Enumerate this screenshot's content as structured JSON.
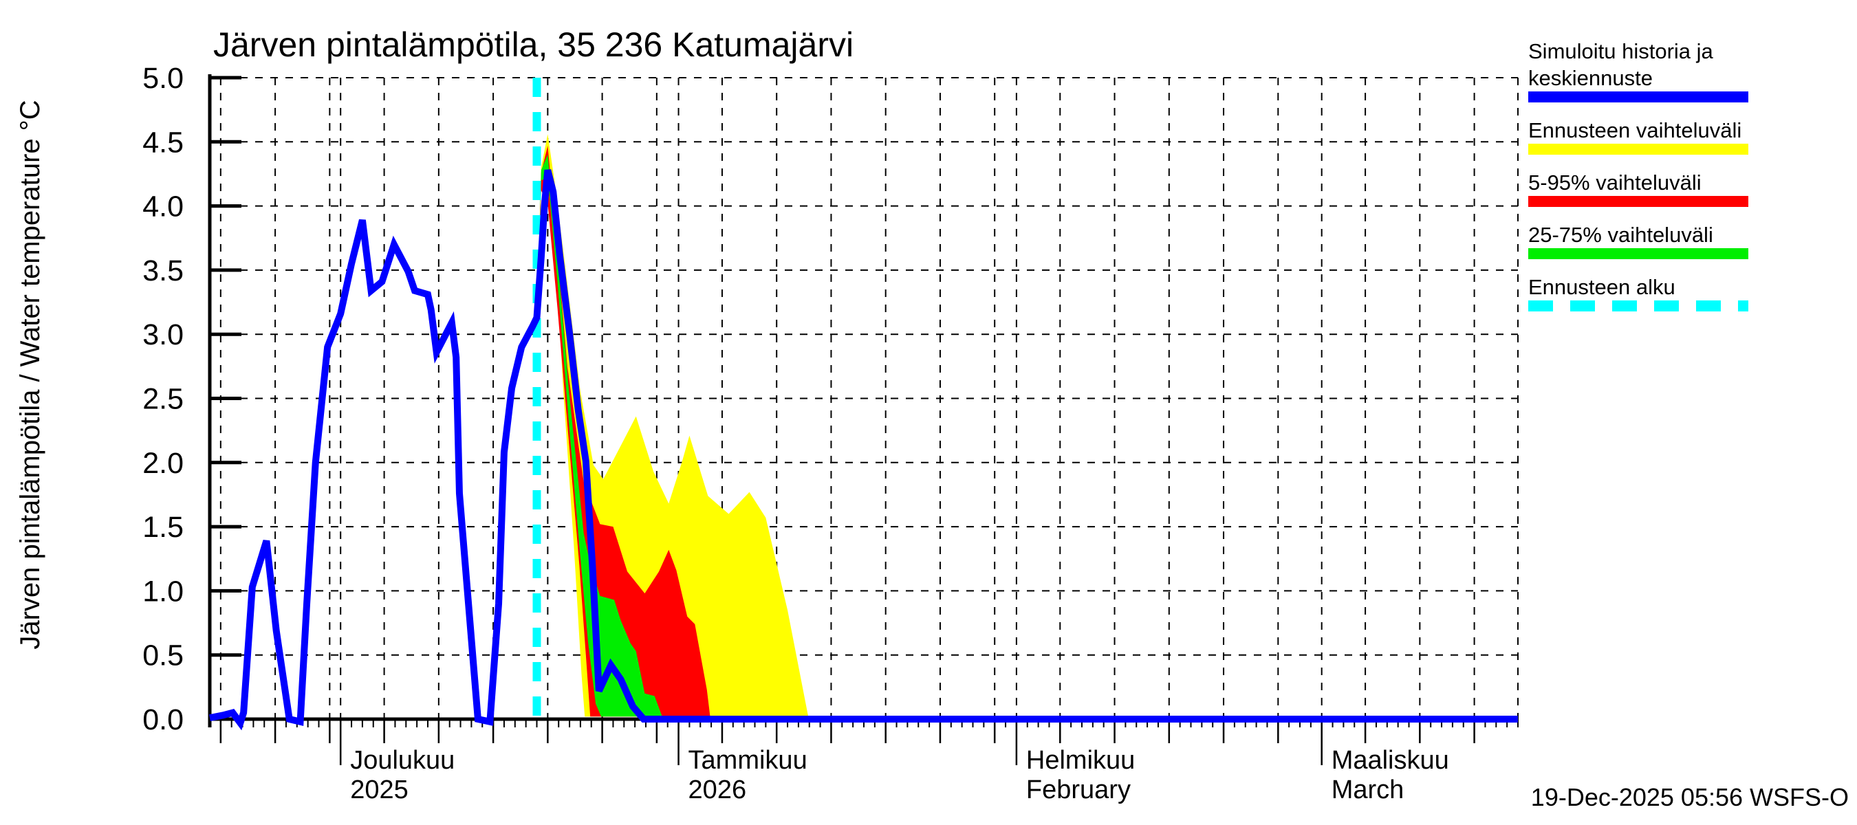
{
  "title": "Järven pintalämpötila, 35 236 Katumajärvi",
  "y_axis_label": "Järven pintalämpötila / Water temperature °C",
  "timestamp": "19-Dec-2025 05:56 WSFS-O",
  "colors": {
    "median": "#0000ff",
    "full_range": "#ffff00",
    "p5_95": "#ff0000",
    "p25_75": "#00ee00",
    "forecast_start": "#00ffff",
    "axis": "#000000",
    "background": "#ffffff"
  },
  "legend": {
    "items": [
      {
        "name": "median",
        "lines": [
          "Simuloitu historia ja",
          "keskiennuste"
        ],
        "color": "#0000ff",
        "dashed": false
      },
      {
        "name": "full-range",
        "lines": [
          "Ennusteen vaihteluväli"
        ],
        "color": "#ffff00",
        "dashed": false
      },
      {
        "name": "p5-95",
        "lines": [
          "5-95% vaihteluväli"
        ],
        "color": "#ff0000",
        "dashed": false
      },
      {
        "name": "p25-75",
        "lines": [
          "25-75% vaihteluväli"
        ],
        "color": "#00ee00",
        "dashed": false
      },
      {
        "name": "forecast-start",
        "lines": [
          "Ennusteen alku"
        ],
        "color": "#00ffff",
        "dashed": true
      }
    ]
  },
  "chart_data": {
    "type": "line",
    "title": "Järven pintalämpötila, 35 236 Katumajärvi",
    "ylabel": "Järven pintalämpötila / Water temperature °C",
    "xlabel": "",
    "grid": true,
    "legend_position": "top-right",
    "y_axis": {
      "min": 0.0,
      "max": 5.0,
      "tick_step": 0.5,
      "tick_labels": [
        "0.0",
        "0.5",
        "1.0",
        "1.5",
        "2.0",
        "2.5",
        "3.0",
        "3.5",
        "4.0",
        "4.5",
        "5.0"
      ]
    },
    "x_axis": {
      "unit": "days",
      "day0_date": "19-Nov-2025",
      "total_days": 120,
      "gridline_days": [
        1,
        6,
        11,
        12,
        16,
        21,
        26,
        31,
        36,
        41,
        43,
        47,
        52,
        57,
        62,
        67,
        72,
        74,
        78,
        83,
        88,
        93,
        98,
        102,
        106,
        111,
        116,
        120
      ],
      "medium_tick_days": [
        1,
        6,
        11,
        16,
        21,
        26,
        31,
        36,
        41,
        47,
        52,
        57,
        62,
        67,
        72,
        78,
        83,
        88,
        93,
        98,
        106,
        111,
        116
      ],
      "month_tick_days": [
        12,
        43,
        74,
        102
      ],
      "months": [
        {
          "label": "Joulukuu",
          "sublabel": "2025",
          "day": 12
        },
        {
          "label": "Tammikuu",
          "sublabel": "2026",
          "day": 43
        },
        {
          "label": "Helmikuu",
          "sublabel": "February",
          "day": 74
        },
        {
          "label": "Maaliskuu",
          "sublabel": "March",
          "day": 102
        }
      ]
    },
    "forecast_start_day": 30,
    "forecast_start_date": "19-Dec-2025",
    "series": [
      {
        "name": "Simuloitu historia ja keskiennuste",
        "color": "#0000ff",
        "width": 10,
        "points_day_temp": [
          [
            0,
            0.01
          ],
          [
            1.2,
            0.03
          ],
          [
            2.1,
            0.05
          ],
          [
            2.8,
            -0.03
          ],
          [
            3.1,
            0.05
          ],
          [
            3.9,
            1.03
          ],
          [
            5.2,
            1.39
          ],
          [
            6.1,
            0.69
          ],
          [
            7.3,
            0.0
          ],
          [
            8.3,
            -0.02
          ],
          [
            8.9,
            0.9
          ],
          [
            9.7,
            2.0
          ],
          [
            10.8,
            2.9
          ],
          [
            12.0,
            3.16
          ],
          [
            13.0,
            3.55
          ],
          [
            14.0,
            3.89
          ],
          [
            14.8,
            3.34
          ],
          [
            15.8,
            3.41
          ],
          [
            16.9,
            3.7
          ],
          [
            18.2,
            3.49
          ],
          [
            18.8,
            3.34
          ],
          [
            20.0,
            3.31
          ],
          [
            20.3,
            3.19
          ],
          [
            20.8,
            2.86
          ],
          [
            22.2,
            3.09
          ],
          [
            22.6,
            2.82
          ],
          [
            22.9,
            1.76
          ],
          [
            24.6,
            0.0
          ],
          [
            25.7,
            -0.02
          ],
          [
            26.5,
            0.9
          ],
          [
            27.0,
            2.08
          ],
          [
            27.7,
            2.58
          ],
          [
            28.6,
            2.9
          ],
          [
            29.6,
            3.06
          ],
          [
            30.0,
            3.13
          ],
          [
            30.4,
            3.6
          ],
          [
            30.7,
            4.0
          ],
          [
            31.0,
            4.28
          ],
          [
            31.5,
            4.11
          ],
          [
            32.1,
            3.62
          ],
          [
            33.0,
            3.01
          ],
          [
            33.8,
            2.41
          ],
          [
            34.5,
            2.01
          ],
          [
            35.1,
            1.2
          ],
          [
            35.7,
            0.22
          ],
          [
            36.8,
            0.42
          ],
          [
            37.7,
            0.31
          ],
          [
            38.8,
            0.1
          ],
          [
            39.8,
            0.0
          ],
          [
            120,
            0.0
          ]
        ]
      }
    ],
    "bands": [
      {
        "name": "Ennusteen vaihteluväli",
        "color": "#ffff00",
        "upper": [
          [
            30,
            3.13
          ],
          [
            30.4,
            4.3
          ],
          [
            31,
            4.56
          ],
          [
            31.7,
            4.15
          ],
          [
            32.5,
            3.6
          ],
          [
            34,
            2.55
          ],
          [
            35.2,
            1.98
          ],
          [
            36.1,
            1.87
          ],
          [
            38,
            2.18
          ],
          [
            39.1,
            2.36
          ],
          [
            40.7,
            1.93
          ],
          [
            42.1,
            1.68
          ],
          [
            43.3,
            2.0
          ],
          [
            44,
            2.21
          ],
          [
            45.7,
            1.74
          ],
          [
            47.6,
            1.6
          ],
          [
            49.5,
            1.77
          ],
          [
            51,
            1.57
          ],
          [
            53,
            0.85
          ],
          [
            54.9,
            0.02
          ]
        ],
        "lower": [
          [
            30,
            3.13
          ],
          [
            30.4,
            4.2
          ],
          [
            31,
            4.35
          ],
          [
            31.6,
            3.8
          ],
          [
            32.4,
            2.6
          ],
          [
            33.4,
            1.35
          ],
          [
            34.1,
            0.35
          ],
          [
            34.4,
            0.02
          ],
          [
            54.9,
            0.02
          ]
        ]
      },
      {
        "name": "5-95% vaihteluväli",
        "color": "#ff0000",
        "upper": [
          [
            30,
            3.13
          ],
          [
            30.4,
            4.26
          ],
          [
            31,
            4.47
          ],
          [
            31.8,
            3.75
          ],
          [
            32.8,
            2.75
          ],
          [
            34.3,
            1.85
          ],
          [
            35.8,
            1.52
          ],
          [
            37,
            1.5
          ],
          [
            38.3,
            1.15
          ],
          [
            39.9,
            0.98
          ],
          [
            41.2,
            1.15
          ],
          [
            42.1,
            1.32
          ],
          [
            42.8,
            1.16
          ],
          [
            43.8,
            0.8
          ],
          [
            44.5,
            0.74
          ],
          [
            45.6,
            0.23
          ],
          [
            45.9,
            0.02
          ]
        ],
        "lower": [
          [
            30,
            3.13
          ],
          [
            30.4,
            4.12
          ],
          [
            31,
            4.02
          ],
          [
            31.9,
            3.2
          ],
          [
            32.9,
            2.2
          ],
          [
            33.9,
            1.2
          ],
          [
            34.5,
            0.5
          ],
          [
            34.9,
            0.02
          ],
          [
            45.9,
            0.02
          ]
        ]
      },
      {
        "name": "25-75% vaihteluväli",
        "color": "#00ee00",
        "upper": [
          [
            30,
            3.13
          ],
          [
            30.4,
            4.28
          ],
          [
            31,
            4.4
          ],
          [
            31.9,
            3.6
          ],
          [
            32.9,
            2.6
          ],
          [
            34.3,
            1.45
          ],
          [
            34.9,
            1.21
          ],
          [
            35.8,
            0.96
          ],
          [
            37.1,
            0.93
          ],
          [
            37.7,
            0.77
          ],
          [
            38.6,
            0.59
          ],
          [
            39.1,
            0.53
          ],
          [
            39.9,
            0.2
          ],
          [
            40.8,
            0.18
          ],
          [
            41.5,
            0.02
          ]
        ],
        "lower": [
          [
            30,
            3.13
          ],
          [
            30.4,
            4.2
          ],
          [
            31,
            4.22
          ],
          [
            31.9,
            3.4
          ],
          [
            32.9,
            2.35
          ],
          [
            33.9,
            1.35
          ],
          [
            34.7,
            0.6
          ],
          [
            35.4,
            0.12
          ],
          [
            35.9,
            0.02
          ],
          [
            41.5,
            0.02
          ]
        ]
      }
    ]
  }
}
